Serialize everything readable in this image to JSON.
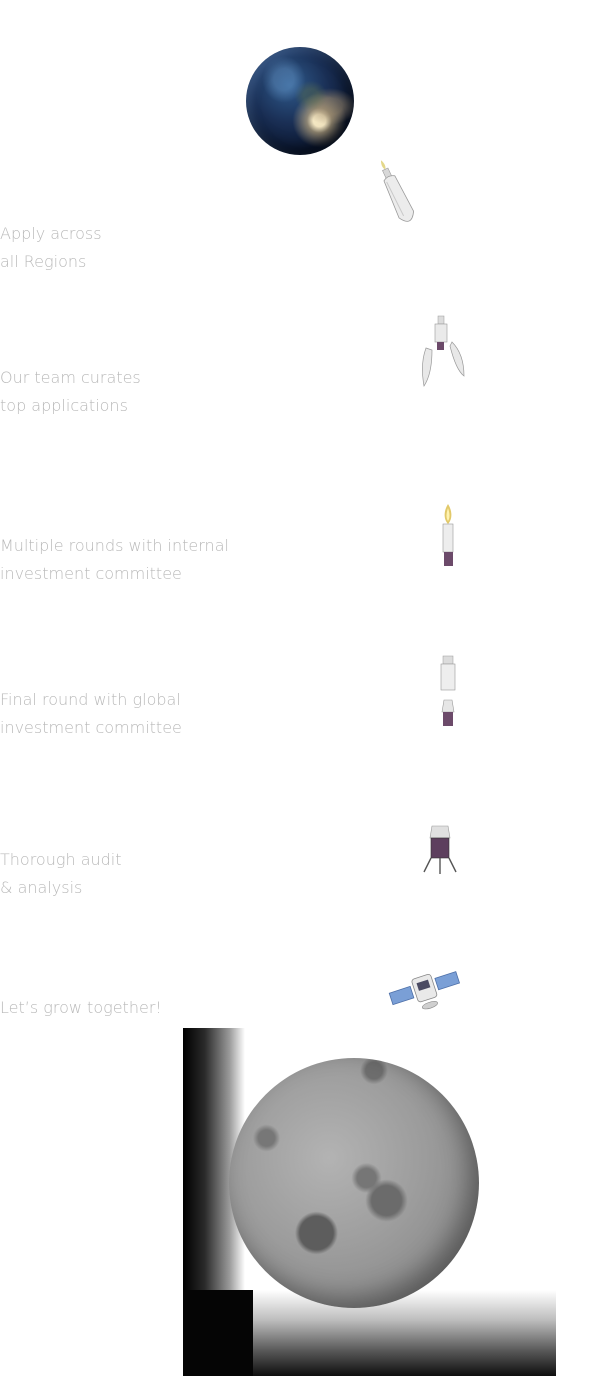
{
  "steps": [
    {
      "line1": "Apply across",
      "line2": "all Regions"
    },
    {
      "line1": "Our team curates",
      "line2": "top applications"
    },
    {
      "line1": "Multiple rounds with internal",
      "line2": "investment committee"
    },
    {
      "line1": "Final round with global",
      "line2": "investment committee"
    },
    {
      "line1": "Thorough audit",
      "line2": "& analysis"
    },
    {
      "line1": "Let’s grow together!",
      "line2": ""
    }
  ],
  "illustrations": {
    "earth": "earth-globe",
    "rocket_launch": "rocket-full",
    "booster_separation": "rocket-booster-separation",
    "upper_stage_burn": "rocket-upper-stage",
    "module_separation": "rocket-module-separation",
    "lander": "lander-module",
    "satellite": "satellite-with-solar-panels",
    "moon": "moon-sphere"
  },
  "colors": {
    "text": "#b9b9b9",
    "background": "#ffffff"
  }
}
